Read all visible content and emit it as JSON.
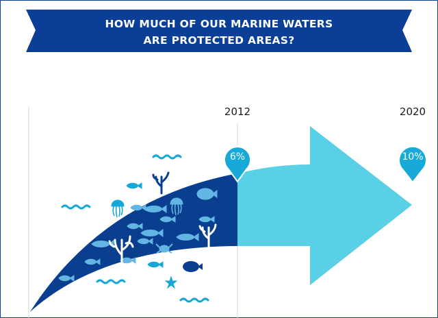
{
  "title": {
    "line1": "HOW MUCH OF OUR MARINE WATERS",
    "line2": "ARE PROTECTED AREAS?"
  },
  "timeline": {
    "year_2012": "2012",
    "year_2020": "2020"
  },
  "milestones": {
    "current": {
      "year": "2012",
      "label": "6%",
      "value": 6
    },
    "target": {
      "year": "2020",
      "label": "10%",
      "value": 10
    }
  },
  "colors": {
    "banner": "#0b3e96",
    "dark_blue": "#0a3f8f",
    "light_blue": "#5ad0e6",
    "pin": "#17a9d8",
    "wave": "#15a7d8",
    "fish_light": "#63b6e4",
    "border": "#0b3e96"
  },
  "icons": [
    "fish-icon",
    "jellyfish-icon",
    "seaweed-icon",
    "crab-icon",
    "starfish-icon",
    "wave-icon",
    "flatfish-icon"
  ]
}
